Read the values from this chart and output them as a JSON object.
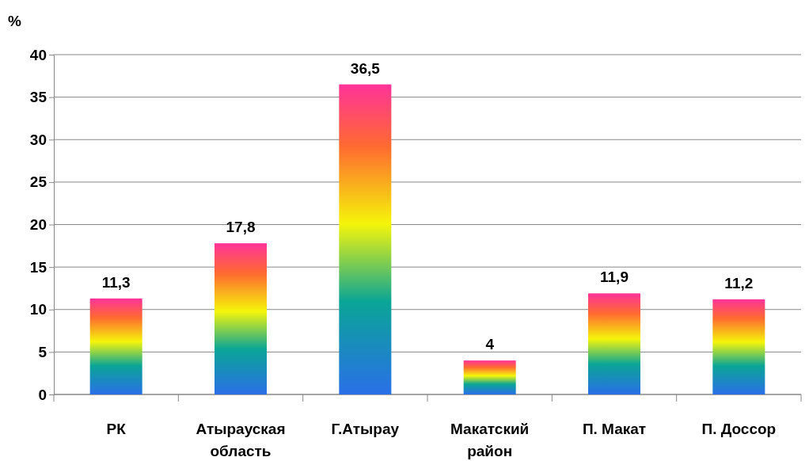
{
  "chart_data": {
    "type": "bar",
    "ylabel": "%",
    "categories": [
      "РК",
      "Атырауская область",
      "Г.Атырау",
      "Макатский район",
      "П. Макат",
      "П. Доссор"
    ],
    "values": [
      11.3,
      17.8,
      36.5,
      4,
      11.9,
      11.2
    ],
    "value_labels": [
      "11,3",
      "17,8",
      "36,5",
      "4",
      "11,9",
      "11,2"
    ],
    "ylim": [
      0,
      40
    ],
    "yticks": [
      0,
      5,
      10,
      15,
      20,
      25,
      30,
      35,
      40
    ],
    "grid": "y"
  }
}
